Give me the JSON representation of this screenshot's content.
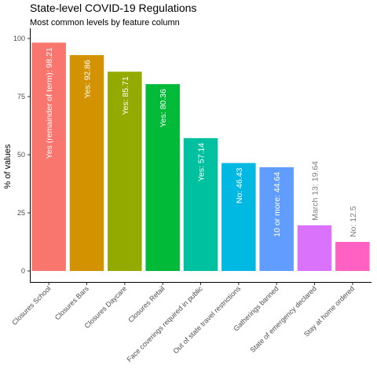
{
  "chart_data": {
    "type": "bar",
    "title": "State-level COVID-19 Regulations",
    "subtitle": "Most common levels by feature column",
    "xlabel": "",
    "ylabel": "% of values",
    "ylim": [
      0,
      100
    ],
    "yticks": [
      0,
      25,
      50,
      75,
      100
    ],
    "grid": false,
    "categories": [
      "Closures School",
      "Closures Bars",
      "Closures Daycare",
      "Closures Retail",
      "Face coverings required in public",
      "Out of state travel restrictions",
      "Gatherings banned",
      "State of emergency declared",
      "Stay at home ordered"
    ],
    "values": [
      98.21,
      92.86,
      85.71,
      80.36,
      57.14,
      46.43,
      44.64,
      19.64,
      12.5
    ],
    "labels": [
      "Yes (remainder of term):  98.21",
      "Yes:  92.86",
      "Yes:  85.71",
      "Yes:  80.36",
      "Yes:  57.14",
      "No:  46.43",
      "10 or more:  44.64",
      "March 13:  19.64",
      "No:  12.5"
    ],
    "colors": [
      "#F8766D",
      "#D39200",
      "#93AA00",
      "#00BA38",
      "#00C19F",
      "#00B9E3",
      "#619CFF",
      "#DB72FB",
      "#FF61C3"
    ]
  }
}
